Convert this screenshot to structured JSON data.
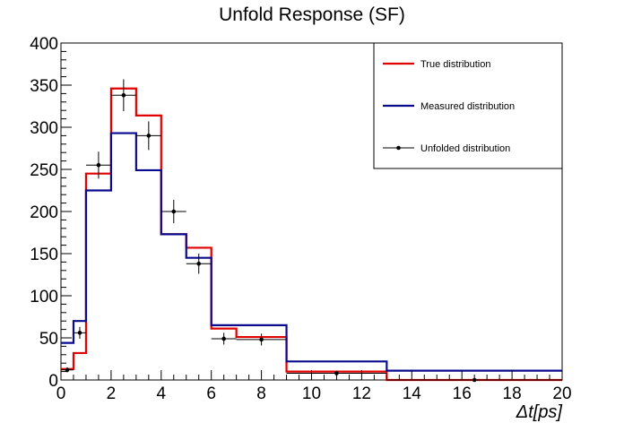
{
  "chart_data": {
    "type": "line",
    "title": "Unfold Response (SF)",
    "xlabel": "Δt[ps]",
    "ylabel": "",
    "xlim": [
      0,
      20
    ],
    "ylim": [
      0,
      400
    ],
    "x_ticks": [
      "0",
      "2",
      "4",
      "6",
      "8",
      "10",
      "12",
      "14",
      "16",
      "18",
      "20"
    ],
    "y_ticks": [
      "0",
      "50",
      "100",
      "150",
      "200",
      "250",
      "300",
      "350",
      "400"
    ],
    "legend_position": "top-right",
    "bin_edges": [
      0,
      0.5,
      1,
      2,
      3,
      4,
      5,
      6,
      7,
      9,
      13,
      20
    ],
    "series": [
      {
        "name": "True distribution",
        "style": "step",
        "color": "#e00000",
        "values": [
          13,
          32,
          245,
          346,
          314,
          173,
          157,
          61,
          51,
          10,
          0
        ]
      },
      {
        "name": "Measured distribution",
        "style": "step",
        "color": "#0a0a8c",
        "values": [
          44,
          70,
          225,
          293,
          249,
          173,
          145,
          65,
          65,
          22,
          11
        ]
      },
      {
        "name": "Unfolded distribution",
        "style": "points",
        "color": "#000000",
        "points": [
          {
            "x": 0.25,
            "y": 12,
            "xerr": 0.25,
            "yerr": 3
          },
          {
            "x": 0.75,
            "y": 56,
            "xerr": 0.25,
            "yerr": 7
          },
          {
            "x": 1.5,
            "y": 255,
            "xerr": 0.5,
            "yerr": 16
          },
          {
            "x": 2.5,
            "y": 338,
            "xerr": 0.5,
            "yerr": 19
          },
          {
            "x": 3.5,
            "y": 290,
            "xerr": 0.5,
            "yerr": 17
          },
          {
            "x": 4.5,
            "y": 200,
            "xerr": 0.5,
            "yerr": 14
          },
          {
            "x": 5.5,
            "y": 138,
            "xerr": 0.5,
            "yerr": 12
          },
          {
            "x": 6.5,
            "y": 49,
            "xerr": 0.5,
            "yerr": 7
          },
          {
            "x": 8,
            "y": 48,
            "xerr": 1,
            "yerr": 7
          },
          {
            "x": 11,
            "y": 8,
            "xerr": 2,
            "yerr": 3
          },
          {
            "x": 16.5,
            "y": 0,
            "xerr": 3.5,
            "yerr": 0
          }
        ]
      }
    ]
  }
}
